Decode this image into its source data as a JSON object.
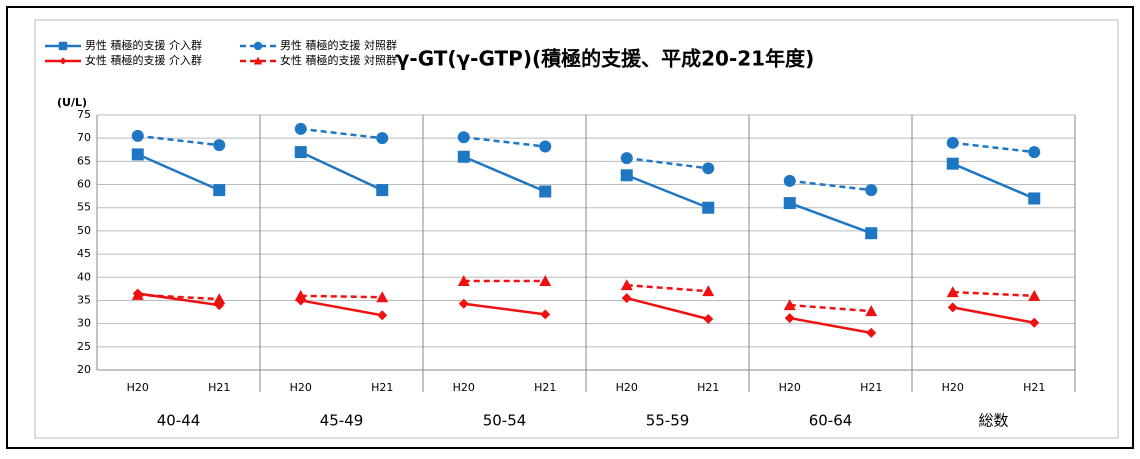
{
  "chart_data": {
    "type": "line",
    "title": "γ-GT(γ-GTP)(積極的支援、平成20-21年度)",
    "y_label": "(U/L)",
    "groups": [
      "40-44",
      "45-49",
      "50-54",
      "55-59",
      "60-64",
      "総数"
    ],
    "categories": [
      "H20",
      "H21",
      "H20",
      "H21",
      "H20",
      "H21",
      "H20",
      "H21",
      "H20",
      "H21",
      "H20",
      "H21"
    ],
    "series": [
      {
        "name": "男性 積極的支援 介入群",
        "color": "#1f77c4",
        "dashed": false,
        "marker": "square",
        "values": [
          66.5,
          58.8,
          67,
          58.8,
          66,
          58.5,
          62,
          55,
          56,
          49.5,
          64.5,
          57
        ]
      },
      {
        "name": "男性 積極的支援 対照群",
        "color": "#1f77c4",
        "dashed": true,
        "marker": "circle",
        "values": [
          70.5,
          68.5,
          72,
          70,
          70.2,
          68.2,
          65.7,
          63.5,
          60.8,
          58.8,
          69,
          67
        ]
      },
      {
        "name": "女性 積極的支援 介入群",
        "color": "#ee1111",
        "dashed": false,
        "marker": "diamond",
        "values": [
          36.5,
          34,
          35,
          31.8,
          34.3,
          32,
          35.5,
          31,
          31.2,
          28,
          33.5,
          30.2
        ]
      },
      {
        "name": "女性 積極的支援 対照群",
        "color": "#ee1111",
        "dashed": true,
        "marker": "triangle",
        "values": [
          36.2,
          35.3,
          36,
          35.7,
          39.2,
          39.2,
          38.3,
          37,
          34,
          32.7,
          36.8,
          36
        ]
      }
    ],
    "ylim": [
      20,
      75
    ],
    "yticks": [
      20,
      25,
      30,
      35,
      40,
      45,
      50,
      55,
      60,
      65,
      70,
      75
    ],
    "grid": true
  }
}
